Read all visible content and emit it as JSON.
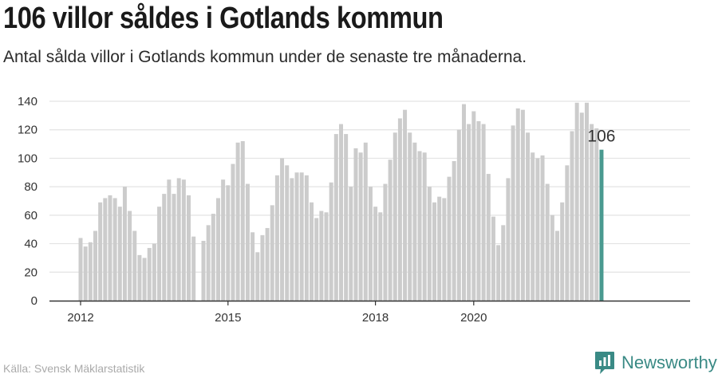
{
  "title": "106 villor såldes i Gotlands kommun",
  "subtitle": "Antal sålda villor i Gotlands kommun under de senaste tre månaderna.",
  "source": "Källa: Svensk Mäklarstatistik",
  "brand": "Newsworthy",
  "colors": {
    "bar": "#cccccc",
    "highlight": "#4a9a90",
    "grid": "#e3e3e3",
    "axis": "#333333",
    "brand": "#3a8a85"
  },
  "chart_data": {
    "type": "bar",
    "ylim": [
      0,
      140
    ],
    "yticks": [
      0,
      20,
      40,
      60,
      80,
      100,
      120,
      140
    ],
    "xticks": [
      {
        "label": "2012",
        "index": 0
      },
      {
        "label": "2015",
        "index": 30
      },
      {
        "label": "2018",
        "index": 60
      },
      {
        "label": "2020",
        "index": 80
      }
    ],
    "grid": true,
    "values": [
      44,
      38,
      41,
      49,
      69,
      72,
      74,
      72,
      66,
      80,
      63,
      49,
      32,
      30,
      37,
      40,
      66,
      75,
      85,
      75,
      86,
      85,
      74,
      45,
      0,
      42,
      53,
      61,
      72,
      85,
      81,
      96,
      111,
      112,
      82,
      48,
      34,
      46,
      51,
      67,
      88,
      100,
      95,
      86,
      90,
      90,
      88,
      69,
      58,
      63,
      62,
      83,
      117,
      124,
      117,
      80,
      107,
      104,
      111,
      80,
      66,
      62,
      82,
      99,
      118,
      128,
      134,
      118,
      111,
      105,
      104,
      80,
      69,
      73,
      72,
      87,
      98,
      120,
      138,
      124,
      133,
      126,
      124,
      89,
      59,
      39,
      53,
      86,
      123,
      135,
      134,
      118,
      104,
      100,
      102,
      82,
      60,
      49,
      69,
      95,
      119,
      139,
      132,
      139,
      124,
      121,
      106
    ],
    "highlight_index": 106,
    "highlight_label": "106"
  }
}
